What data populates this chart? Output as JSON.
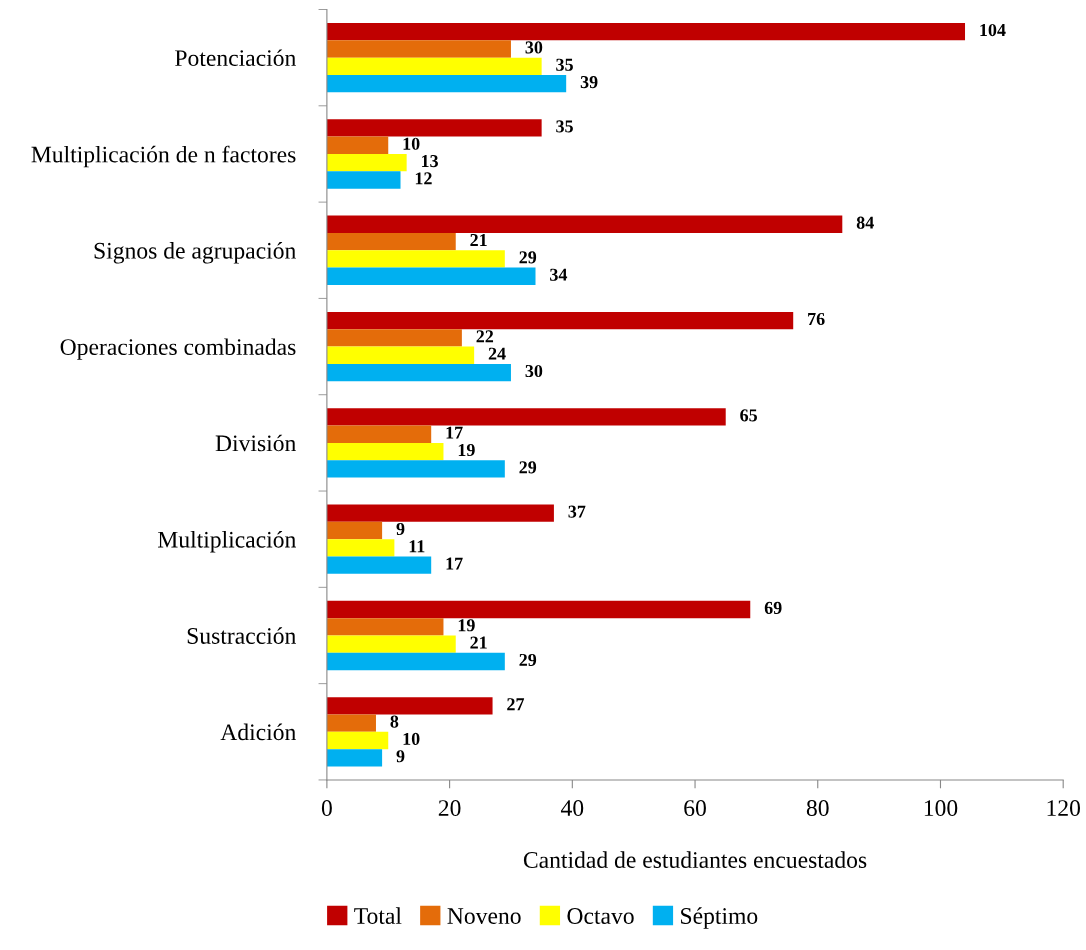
{
  "chart_data": {
    "type": "bar",
    "orientation": "horizontal",
    "xlabel": "Cantidad de estudiantes encuestados",
    "categories": [
      "Potenciación",
      "Multiplicación de n factores",
      "Signos de agrupación",
      "Operaciones combinadas",
      "División",
      "Multiplicación",
      "Sustracción",
      "Adición"
    ],
    "series": [
      {
        "name": "Total",
        "color": "#c00000",
        "values": [
          104,
          35,
          84,
          76,
          65,
          37,
          69,
          27
        ]
      },
      {
        "name": "Noveno",
        "color": "#e46c0a",
        "values": [
          30,
          10,
          21,
          22,
          17,
          9,
          19,
          8
        ]
      },
      {
        "name": "Octavo",
        "color": "#ffff00",
        "values": [
          35,
          13,
          29,
          24,
          19,
          11,
          21,
          10
        ]
      },
      {
        "name": "Séptimo",
        "color": "#00b0f0",
        "values": [
          39,
          12,
          34,
          30,
          29,
          17,
          29,
          9
        ]
      }
    ],
    "xlim": [
      0,
      120
    ],
    "xticks": [
      0,
      20,
      40,
      60,
      80,
      100,
      120
    ],
    "data_labels": true,
    "legend": "bottom",
    "grid": false
  }
}
